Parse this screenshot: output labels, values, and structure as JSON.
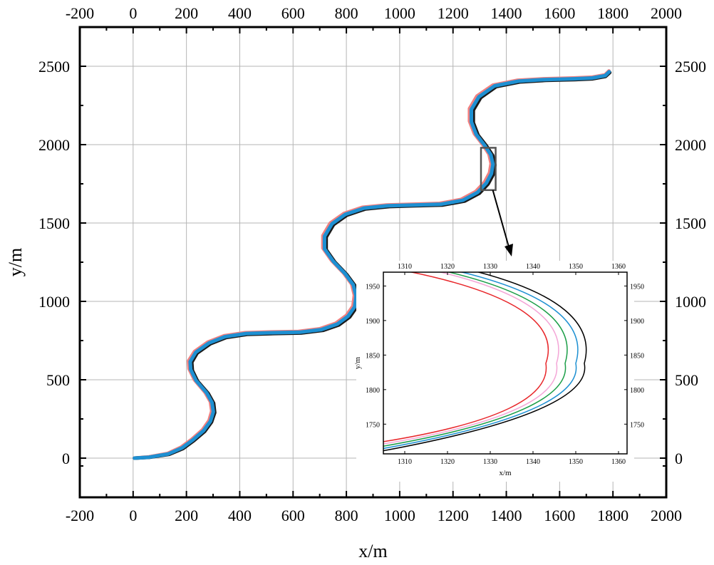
{
  "chart_data": [
    {
      "type": "line",
      "xlabel": "x/m",
      "ylabel": "y/m",
      "xlim": [
        -200,
        2000
      ],
      "ylim": [
        -250,
        2750
      ],
      "xticks": [
        -200,
        0,
        200,
        400,
        600,
        800,
        1000,
        1200,
        1400,
        1600,
        1800,
        2000
      ],
      "yticks": [
        0,
        500,
        1000,
        1500,
        2000,
        2500
      ],
      "grid": true,
      "series": [
        {
          "color": "#f08080",
          "x": [
            5,
            60,
            130,
            180,
            220,
            260,
            285,
            295,
            290,
            270,
            230,
            210,
            208,
            230,
            280,
            340,
            420,
            520,
            620,
            700,
            760,
            800,
            825,
            830,
            820,
            790,
            745,
            712,
            712,
            740,
            790,
            860,
            950,
            1050,
            1150,
            1230,
            1285,
            1318,
            1337,
            1343,
            1335,
            1312,
            1280,
            1262,
            1262,
            1290,
            1350,
            1440,
            1540,
            1650,
            1720,
            1770,
            1785
          ],
          "y": [
            0,
            8,
            30,
            70,
            120,
            180,
            240,
            300,
            360,
            420,
            500,
            570,
            620,
            680,
            740,
            780,
            800,
            805,
            808,
            825,
            860,
            910,
            970,
            1040,
            1110,
            1180,
            1260,
            1340,
            1420,
            1500,
            1560,
            1600,
            1615,
            1620,
            1625,
            1650,
            1700,
            1760,
            1820,
            1880,
            1940,
            2000,
            2070,
            2150,
            2230,
            2310,
            2380,
            2410,
            2420,
            2425,
            2430,
            2445,
            2470
          ]
        },
        {
          "color": "#1a1a1a",
          "x": [
            5,
            60,
            135,
            188,
            228,
            268,
            294,
            306,
            302,
            282,
            242,
            222,
            220,
            240,
            290,
            350,
            430,
            530,
            630,
            712,
            772,
            812,
            837,
            842,
            832,
            802,
            757,
            724,
            724,
            752,
            802,
            872,
            962,
            1062,
            1162,
            1244,
            1299,
            1332,
            1351,
            1357,
            1349,
            1326,
            1294,
            1276,
            1276,
            1304,
            1362,
            1450,
            1548,
            1656,
            1724,
            1772,
            1788
          ],
          "y": [
            0,
            5,
            24,
            62,
            112,
            170,
            230,
            290,
            350,
            412,
            490,
            560,
            612,
            670,
            730,
            770,
            790,
            795,
            798,
            815,
            850,
            900,
            960,
            1030,
            1100,
            1170,
            1250,
            1330,
            1410,
            1490,
            1550,
            1590,
            1605,
            1610,
            1615,
            1640,
            1690,
            1750,
            1810,
            1870,
            1930,
            1990,
            2060,
            2140,
            2220,
            2300,
            2370,
            2400,
            2410,
            2415,
            2420,
            2435,
            2460
          ]
        },
        {
          "color": "#1e90d2",
          "x": [
            5,
            60,
            132,
            184,
            224,
            264,
            290,
            301,
            296,
            276,
            236,
            216,
            214,
            235,
            285,
            345,
            425,
            525,
            625,
            706,
            766,
            806,
            831,
            836,
            826,
            796,
            751,
            718,
            718,
            746,
            796,
            866,
            956,
            1056,
            1156,
            1237,
            1292,
            1325,
            1344,
            1350,
            1342,
            1319,
            1287,
            1269,
            1269,
            1297,
            1356,
            1445,
            1544,
            1653,
            1722,
            1771,
            1786
          ],
          "y": [
            0,
            6,
            27,
            66,
            116,
            175,
            235,
            295,
            355,
            416,
            495,
            565,
            616,
            675,
            735,
            775,
            795,
            800,
            803,
            820,
            855,
            905,
            965,
            1035,
            1105,
            1175,
            1255,
            1335,
            1415,
            1495,
            1555,
            1595,
            1610,
            1615,
            1620,
            1645,
            1695,
            1755,
            1815,
            1875,
            1935,
            1995,
            2065,
            2145,
            2225,
            2305,
            2375,
            2405,
            2415,
            2420,
            2425,
            2440,
            2465
          ]
        }
      ]
    },
    {
      "type": "line",
      "xlabel": "x/m",
      "ylabel": "y/m",
      "xlim": [
        1305,
        1362
      ],
      "ylim": [
        1707,
        1970
      ],
      "xticks": [
        1310,
        1320,
        1330,
        1340,
        1350,
        1360
      ],
      "yticks": [
        1750,
        1800,
        1850,
        1900,
        1950
      ],
      "grid": false,
      "series": [
        {
          "color": "#e8262a",
          "apex_x": 1343,
          "apex_y": 1838,
          "x_at_top": 1310,
          "x_at_bottom": 1305
        },
        {
          "color": "#f4a6d7",
          "apex_x": 1345.5,
          "apex_y": 1838,
          "x_at_top": 1317,
          "x_at_bottom": 1305
        },
        {
          "color": "#1c9e48",
          "apex_x": 1347.5,
          "apex_y": 1838,
          "x_at_top": 1319,
          "x_at_bottom": 1305
        },
        {
          "color": "#1e90d2",
          "apex_x": 1350,
          "apex_y": 1838,
          "x_at_top": 1322,
          "x_at_bottom": 1305
        },
        {
          "color": "#000000",
          "apex_x": 1352,
          "apex_y": 1838,
          "x_at_top": 1326,
          "x_at_bottom": 1305
        }
      ]
    }
  ],
  "zoom_box": {
    "x0": 1305,
    "x1": 1360,
    "y0": 1710,
    "y1": 1980
  },
  "zoom_arrow_color": "#000000"
}
